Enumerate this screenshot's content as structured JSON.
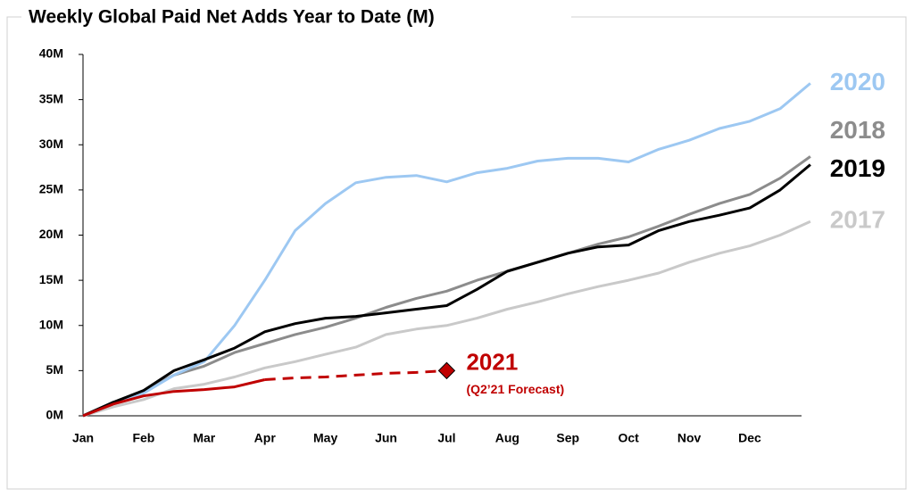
{
  "chart_data": {
    "type": "line",
    "title": "Weekly Global Paid Net Adds Year to Date (M)",
    "categories": [
      "Jan",
      null,
      "Feb",
      null,
      "Mar",
      null,
      "Apr",
      null,
      "May",
      null,
      "Jun",
      null,
      "Jul",
      null,
      "Aug",
      null,
      "Sep",
      null,
      "Oct",
      null,
      "Nov",
      null,
      "Dec",
      null,
      null
    ],
    "ylim": [
      0,
      40
    ],
    "yticks": [
      {
        "value": 0,
        "label": "0M"
      },
      {
        "value": 5,
        "label": "5M"
      },
      {
        "value": 10,
        "label": "10M"
      },
      {
        "value": 15,
        "label": "15M"
      },
      {
        "value": 20,
        "label": "20M"
      },
      {
        "value": 25,
        "label": "25M"
      },
      {
        "value": 30,
        "label": "30M"
      },
      {
        "value": 35,
        "label": "35M"
      },
      {
        "value": 40,
        "label": "40M"
      }
    ],
    "grid": false,
    "series": [
      {
        "name": "2017",
        "color": "#c9c9c9",
        "values": [
          0,
          1,
          1.8,
          3,
          3.5,
          4.3,
          5.3,
          6,
          6.8,
          7.6,
          9,
          9.6,
          10,
          10.8,
          11.8,
          12.6,
          13.5,
          14.3,
          15,
          15.8,
          17,
          18,
          18.8,
          20,
          21.5
        ]
      },
      {
        "name": "2018",
        "color": "#8c8c8c",
        "values": [
          0,
          1.5,
          2.8,
          4.5,
          5.5,
          7,
          8,
          9,
          9.8,
          10.8,
          12,
          13,
          13.8,
          15,
          16,
          17,
          18,
          19,
          19.8,
          21,
          22.3,
          23.5,
          24.5,
          26.3,
          28.7
        ]
      },
      {
        "name": "2020",
        "color": "#9dc8f2",
        "values": [
          0,
          1.5,
          2.5,
          4.5,
          6,
          10,
          15,
          20.5,
          23.5,
          25.8,
          26.4,
          26.6,
          25.9,
          26.9,
          27.4,
          28.2,
          28.5,
          28.5,
          28.1,
          29.5,
          30.5,
          31.8,
          32.6,
          34,
          36.8
        ]
      },
      {
        "name": "2019",
        "color": "#000000",
        "values": [
          0,
          1.5,
          2.8,
          5,
          6.2,
          7.5,
          9.3,
          10.2,
          10.8,
          11,
          11.4,
          11.8,
          12.2,
          14,
          16,
          17,
          18,
          18.7,
          18.9,
          20.5,
          21.5,
          22.2,
          23,
          25,
          27.8
        ]
      },
      {
        "name": "2021",
        "color": "#c00000",
        "values": [
          0,
          1.3,
          2.2,
          2.7,
          2.9,
          3.2,
          4.0,
          null,
          null,
          null,
          null,
          null,
          null,
          null,
          null,
          null,
          null,
          null,
          null,
          null,
          null,
          null,
          null,
          null,
          null
        ]
      },
      {
        "name": "(Q2’21 Forecast)",
        "color": "#c00000",
        "dashed": true,
        "marker": "diamond",
        "values": [
          null,
          null,
          null,
          null,
          null,
          null,
          4.0,
          4.2,
          4.3,
          4.5,
          4.7,
          4.8,
          5.0,
          null,
          null,
          null,
          null,
          null,
          null,
          null,
          null,
          null,
          null,
          null,
          null
        ]
      }
    ]
  }
}
